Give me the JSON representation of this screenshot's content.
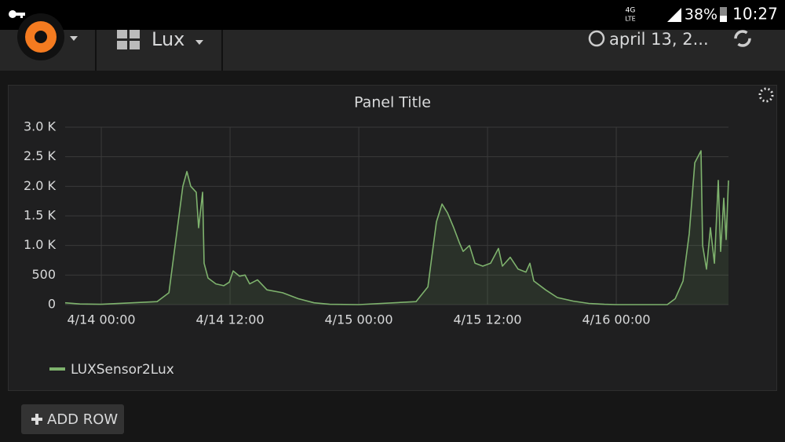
{
  "status_bar": {
    "network": "4G",
    "network_sub": "LTE",
    "battery": "38%",
    "time": "10:27"
  },
  "header": {
    "dashboard": "Lux",
    "time_range": "april 13, 2..."
  },
  "add_row_button": "ADD ROW",
  "chart_data": {
    "type": "line",
    "title": "Panel Title",
    "x": [
      -3.37,
      -2,
      0,
      5.2,
      6.3,
      6.66,
      7.24,
      7.6,
      7.98,
      8.34,
      8.85,
      9.07,
      9.44,
      9.58,
      9.95,
      10.68,
      11.41,
      11.93,
      12.29,
      12.88,
      13.39,
      13.83,
      14.56,
      15.44,
      16.9,
      18.37,
      19.83,
      21.3,
      24,
      29.34,
      30.44,
      30.8,
      31.24,
      31.76,
      32.27,
      32.85,
      33.37,
      33.73,
      34.32,
      34.83,
      35.56,
      36.29,
      37.02,
      37.39,
      38.12,
      38.85,
      39.58,
      39.95,
      40.31,
      41.41,
      42.51,
      43.97,
      45.44,
      46.9,
      48,
      52.75,
      53.49,
      54.22,
      54.8,
      55.32,
      55.9,
      56.05,
      56.41,
      56.78,
      57.15,
      57.51,
      57.73,
      58.02,
      58.24,
      58.46
    ],
    "series": [
      {
        "name": "LUXSensor2Lux",
        "color": "#7eb26d",
        "values": [
          30,
          10,
          5,
          50,
          200,
          700,
          1500,
          2000,
          2250,
          2000,
          1900,
          1300,
          1900,
          700,
          450,
          350,
          320,
          380,
          570,
          480,
          500,
          350,
          420,
          250,
          200,
          100,
          30,
          5,
          0,
          50,
          300,
          800,
          1400,
          1700,
          1550,
          1300,
          1050,
          900,
          1000,
          700,
          650,
          700,
          950,
          650,
          800,
          600,
          550,
          700,
          400,
          250,
          120,
          60,
          20,
          5,
          0,
          0,
          100,
          400,
          1200,
          2400,
          2600,
          1000,
          600,
          1300,
          700,
          2100,
          900,
          1800,
          1100,
          2100
        ]
      }
    ],
    "xlim": [
      -3.37,
      58.46
    ],
    "xticks": [
      {
        "value": 0,
        "label": "4/14 00:00"
      },
      {
        "value": 12,
        "label": "4/14 12:00"
      },
      {
        "value": 24,
        "label": "4/15 00:00"
      },
      {
        "value": 36,
        "label": "4/15 12:00"
      },
      {
        "value": 48,
        "label": "4/16 00:00"
      }
    ],
    "ylim": [
      0,
      3000
    ],
    "yticks": [
      0,
      500,
      {
        "value": 1000,
        "label": "1.0 K"
      },
      {
        "value": 1500,
        "label": "1.5 K"
      },
      {
        "value": 2000,
        "label": "2.0 K"
      },
      {
        "value": 2500,
        "label": "2.5 K"
      },
      {
        "value": 3000,
        "label": "3.0 K"
      }
    ],
    "grid": true
  }
}
